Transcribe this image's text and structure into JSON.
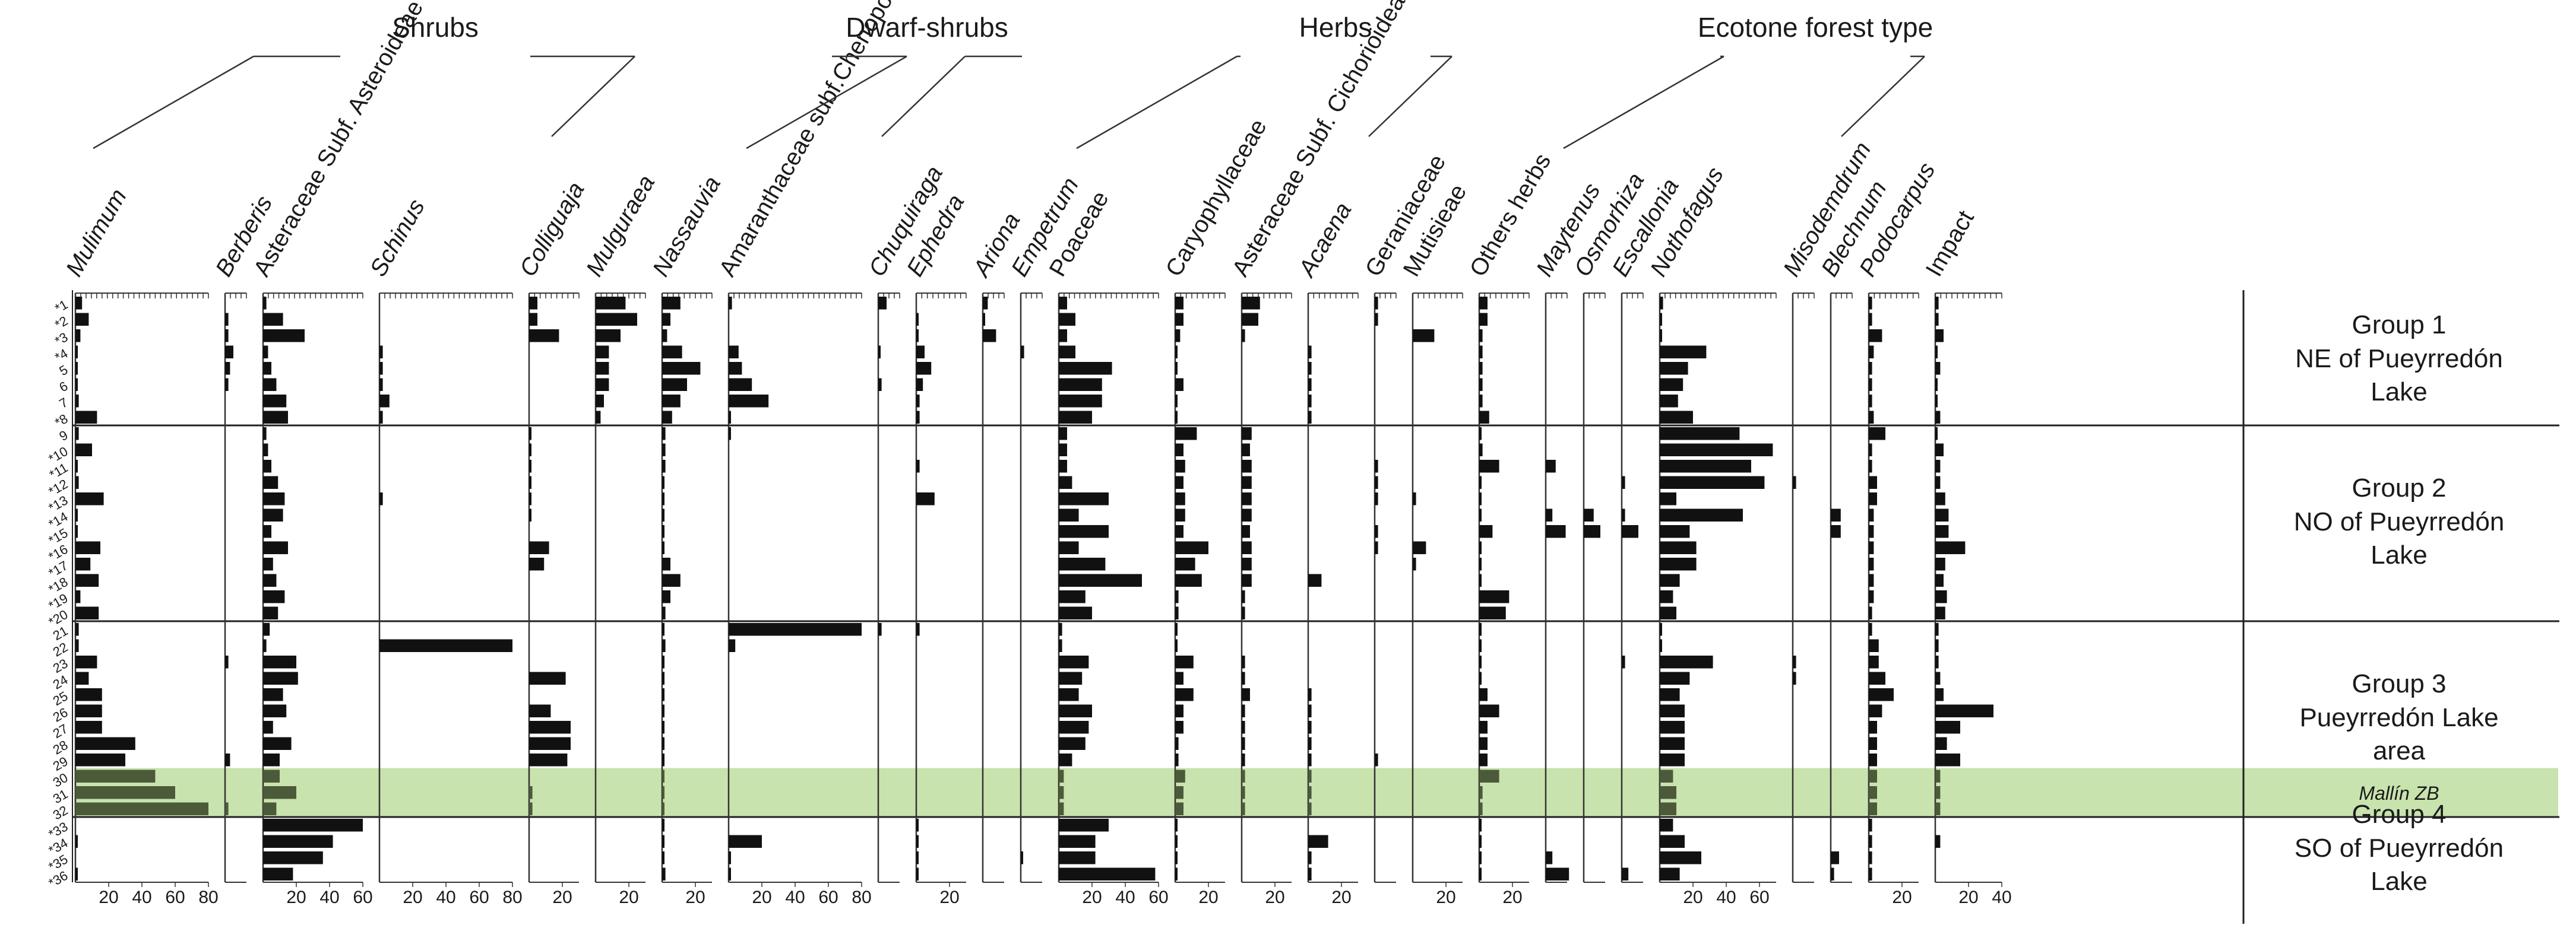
{
  "chart_data": {
    "type": "bar",
    "orientation": "horizontal",
    "title": "",
    "category_headers": [
      "Shrubs",
      "Dwarf-shrubs",
      "Herbs",
      "Ecotone forest type"
    ],
    "samples": [
      "*1",
      "*2",
      "*3",
      "*4",
      "5",
      "6",
      "7",
      "*8",
      "9",
      "*10",
      "*11",
      "*12",
      "*13",
      "*14",
      "*15",
      "*16",
      "*17",
      "*18",
      "*19",
      "*20",
      "21",
      "22",
      "23",
      "24",
      "25",
      "26",
      "27",
      "28",
      "29",
      "30",
      "31",
      "32",
      "*33",
      "*34",
      "*35",
      "*36"
    ],
    "mallin_label": "Mallín ZB",
    "mallin_rows": [
      "30",
      "31",
      "32"
    ],
    "groups": [
      {
        "name": "Group 1",
        "location": "NE of Pueyrredón Lake",
        "first": "*1",
        "last": "*8"
      },
      {
        "name": "Group 2",
        "location": "NO of Pueyrredón Lake",
        "first": "9",
        "last": "*20"
      },
      {
        "name": "Group 3",
        "location": "Pueyrredón Lake area",
        "first": "21",
        "last": "32"
      },
      {
        "name": "Group 4",
        "location": "SO of Pueyrredón Lake",
        "first": "*33",
        "last": "*36"
      }
    ],
    "series": [
      {
        "name": "Mulimum",
        "italic": true,
        "max": 80,
        "ticks": [
          "20",
          "40",
          "60",
          "80"
        ],
        "values": [
          4,
          8,
          3,
          1,
          1,
          1,
          2,
          13,
          2,
          10,
          1,
          2,
          17,
          1,
          1,
          15,
          9,
          14,
          3,
          14,
          2,
          2,
          13,
          8,
          16,
          16,
          16,
          36,
          30,
          48,
          60,
          80,
          0,
          1,
          0,
          1
        ]
      },
      {
        "name": "Berberis",
        "italic": true,
        "max": 10,
        "ticks": [],
        "values": [
          0,
          2,
          2,
          5,
          3,
          2,
          0,
          0,
          0,
          0,
          0,
          0,
          0,
          0,
          0,
          0,
          0,
          0,
          0,
          0,
          0,
          0,
          2,
          0,
          0,
          0,
          0,
          0,
          3,
          0,
          0,
          2,
          0,
          0,
          0,
          0
        ]
      },
      {
        "name": "Asteraceae Subf. Asteroideae",
        "italic": false,
        "max": 60,
        "ticks": [
          "20",
          "40",
          "60"
        ],
        "values": [
          2,
          12,
          25,
          3,
          5,
          8,
          14,
          15,
          2,
          3,
          5,
          9,
          13,
          12,
          5,
          15,
          6,
          8,
          13,
          9,
          4,
          2,
          20,
          21,
          12,
          14,
          6,
          17,
          10,
          10,
          20,
          8,
          60,
          42,
          36,
          18
        ]
      },
      {
        "name": "Schinus",
        "italic": true,
        "max": 80,
        "ticks": [
          "20",
          "40",
          "60",
          "80"
        ],
        "values": [
          0,
          0,
          0,
          2,
          2,
          2,
          6,
          2,
          0,
          0,
          0,
          0,
          2,
          0,
          0,
          0,
          0,
          0,
          0,
          0,
          0,
          80,
          0,
          0,
          0,
          0,
          0,
          0,
          0,
          0,
          0,
          0,
          0,
          0,
          0,
          0
        ]
      },
      {
        "name": "Colliguaja",
        "italic": true,
        "max": 30,
        "ticks": [
          "20"
        ],
        "values": [
          5,
          5,
          18,
          0,
          0,
          0,
          0,
          0,
          1,
          1,
          1,
          1,
          1,
          1,
          0,
          12,
          9,
          0,
          0,
          0,
          0,
          0,
          0,
          22,
          0,
          13,
          25,
          25,
          23,
          0,
          2,
          2,
          0,
          0,
          0,
          0
        ]
      },
      {
        "name": "Mulguraea",
        "italic": true,
        "max": 30,
        "ticks": [
          "20"
        ],
        "values": [
          18,
          25,
          15,
          8,
          8,
          8,
          5,
          3,
          0,
          0,
          0,
          0,
          0,
          0,
          0,
          0,
          0,
          0,
          0,
          0,
          0,
          0,
          0,
          0,
          0,
          0,
          0,
          0,
          0,
          0,
          0,
          0,
          0,
          0,
          0,
          0
        ]
      },
      {
        "name": "Nassauvia",
        "italic": true,
        "max": 30,
        "ticks": [
          "20"
        ],
        "values": [
          11,
          5,
          3,
          12,
          23,
          15,
          11,
          6,
          2,
          2,
          2,
          1,
          1,
          1,
          1,
          1,
          5,
          11,
          5,
          2,
          1,
          2,
          1,
          1,
          1,
          1,
          1,
          1,
          1,
          1,
          1,
          1,
          1,
          1,
          1,
          2
        ]
      },
      {
        "name": "Amaranthaceae subf.Chenopodioideae",
        "italic": false,
        "max": 80,
        "ticks": [
          "20",
          "40",
          "60",
          "80"
        ],
        "values": [
          2,
          0,
          0,
          6,
          8,
          14,
          24,
          1,
          1,
          0,
          0,
          0,
          0,
          0,
          0,
          0,
          0,
          0,
          0,
          0,
          80,
          4,
          0,
          0,
          0,
          0,
          0,
          0,
          0,
          0,
          0,
          0,
          0,
          20,
          1,
          1
        ]
      },
      {
        "name": "Chuquiraga",
        "italic": true,
        "max": 10,
        "ticks": [],
        "values": [
          5,
          0,
          0,
          1,
          0,
          2,
          0,
          0,
          0,
          0,
          0,
          0,
          0,
          0,
          0,
          0,
          0,
          0,
          0,
          0,
          2,
          0,
          0,
          0,
          0,
          0,
          0,
          0,
          0,
          0,
          0,
          0,
          0,
          0,
          0,
          0
        ]
      },
      {
        "name": "Ephedra",
        "italic": true,
        "max": 30,
        "ticks": [
          "20"
        ],
        "values": [
          0,
          1,
          1,
          5,
          9,
          4,
          2,
          2,
          0,
          0,
          2,
          0,
          11,
          0,
          0,
          0,
          0,
          0,
          0,
          0,
          2,
          0,
          0,
          0,
          0,
          0,
          0,
          0,
          0,
          0,
          0,
          0,
          1,
          1,
          1,
          1
        ]
      },
      {
        "name": "Ariona",
        "italic": true,
        "max": 10,
        "ticks": [],
        "values": [
          3,
          1,
          8,
          0,
          0,
          0,
          0,
          0,
          0,
          0,
          0,
          0,
          0,
          0,
          0,
          0,
          0,
          0,
          0,
          0,
          0,
          0,
          0,
          0,
          0,
          0,
          0,
          0,
          0,
          0,
          0,
          0,
          0,
          0,
          0,
          0
        ]
      },
      {
        "name": "Empetrum",
        "italic": true,
        "max": 10,
        "ticks": [],
        "values": [
          0,
          0,
          0,
          2,
          0,
          0,
          0,
          0,
          0,
          0,
          0,
          0,
          0,
          0,
          0,
          0,
          0,
          0,
          0,
          0,
          0,
          0,
          0,
          0,
          0,
          0,
          0,
          0,
          0,
          0,
          0,
          0,
          0,
          0,
          1,
          0
        ]
      },
      {
        "name": "Poaceae",
        "italic": false,
        "max": 60,
        "ticks": [
          "20",
          "40",
          "60"
        ],
        "values": [
          5,
          10,
          5,
          10,
          32,
          26,
          26,
          20,
          5,
          5,
          5,
          8,
          30,
          12,
          30,
          12,
          28,
          50,
          16,
          20,
          2,
          2,
          18,
          14,
          12,
          20,
          18,
          16,
          8,
          3,
          3,
          3,
          30,
          22,
          22,
          58
        ]
      },
      {
        "name": "Caryophyllaceae",
        "italic": false,
        "max": 30,
        "ticks": [
          "20"
        ],
        "values": [
          5,
          5,
          3,
          1,
          1,
          5,
          1,
          1,
          13,
          5,
          6,
          5,
          6,
          6,
          5,
          20,
          12,
          16,
          2,
          2,
          1,
          1,
          11,
          5,
          11,
          5,
          5,
          2,
          2,
          6,
          5,
          5,
          1,
          1,
          1,
          1
        ]
      },
      {
        "name": "Asteraceae Subf. Cichorioideae",
        "italic": false,
        "max": 30,
        "ticks": [
          "20"
        ],
        "values": [
          11,
          10,
          2,
          0,
          0,
          0,
          0,
          0,
          6,
          5,
          6,
          6,
          6,
          6,
          5,
          6,
          6,
          6,
          2,
          2,
          0,
          0,
          2,
          2,
          5,
          2,
          2,
          2,
          2,
          2,
          2,
          2,
          0,
          0,
          0,
          0
        ]
      },
      {
        "name": "Acaena",
        "italic": true,
        "max": 30,
        "ticks": [
          "20"
        ],
        "values": [
          0,
          0,
          0,
          2,
          2,
          2,
          2,
          2,
          0,
          0,
          0,
          0,
          0,
          0,
          0,
          0,
          0,
          8,
          0,
          0,
          0,
          0,
          0,
          0,
          2,
          2,
          2,
          2,
          2,
          2,
          2,
          2,
          0,
          12,
          2,
          2
        ]
      },
      {
        "name": "Geraniaceae",
        "italic": false,
        "max": 10,
        "ticks": [],
        "values": [
          2,
          2,
          0,
          0,
          0,
          0,
          0,
          0,
          0,
          0,
          2,
          2,
          2,
          0,
          2,
          2,
          0,
          0,
          0,
          0,
          0,
          0,
          0,
          0,
          0,
          0,
          0,
          0,
          2,
          0,
          0,
          0,
          0,
          0,
          0,
          0
        ]
      },
      {
        "name": "Mutisieae",
        "italic": false,
        "max": 30,
        "ticks": [
          "20"
        ],
        "values": [
          0,
          0,
          13,
          0,
          0,
          0,
          0,
          0,
          0,
          0,
          0,
          0,
          2,
          0,
          0,
          8,
          2,
          0,
          0,
          0,
          0,
          0,
          0,
          0,
          0,
          0,
          0,
          0,
          0,
          0,
          0,
          0,
          0,
          0,
          0,
          0
        ]
      },
      {
        "name": "Others herbs",
        "italic": false,
        "max": 30,
        "ticks": [
          "20"
        ],
        "values": [
          5,
          5,
          2,
          2,
          2,
          2,
          2,
          6,
          1,
          2,
          12,
          1,
          1,
          1,
          8,
          1,
          1,
          1,
          18,
          16,
          1,
          1,
          1,
          1,
          5,
          12,
          5,
          5,
          5,
          12,
          2,
          2,
          1,
          1,
          1,
          1
        ]
      },
      {
        "name": "Maytenus",
        "italic": true,
        "max": 10,
        "ticks": [],
        "values": [
          0,
          0,
          0,
          0,
          0,
          0,
          0,
          0,
          0,
          0,
          6,
          0,
          0,
          4,
          12,
          0,
          0,
          0,
          0,
          0,
          0,
          0,
          0,
          0,
          0,
          0,
          0,
          0,
          0,
          0,
          0,
          0,
          0,
          0,
          4,
          14
        ]
      },
      {
        "name": "Osmorhiza",
        "italic": true,
        "max": 10,
        "ticks": [],
        "values": [
          0,
          0,
          0,
          0,
          0,
          0,
          0,
          0,
          0,
          0,
          0,
          0,
          0,
          6,
          10,
          0,
          0,
          0,
          0,
          0,
          0,
          0,
          0,
          0,
          0,
          0,
          0,
          0,
          0,
          0,
          0,
          0,
          0,
          0,
          0,
          0
        ]
      },
      {
        "name": "Escallonia",
        "italic": true,
        "max": 10,
        "ticks": [],
        "values": [
          0,
          0,
          0,
          0,
          0,
          0,
          0,
          0,
          0,
          0,
          0,
          2,
          0,
          2,
          10,
          0,
          0,
          0,
          0,
          0,
          0,
          0,
          2,
          0,
          0,
          0,
          0,
          0,
          0,
          0,
          0,
          0,
          0,
          0,
          0,
          4
        ]
      },
      {
        "name": "Nothofagus",
        "italic": true,
        "max": 70,
        "ticks": [
          "20",
          "40",
          "60"
        ],
        "values": [
          2,
          1,
          1,
          28,
          17,
          14,
          11,
          20,
          48,
          68,
          55,
          63,
          10,
          50,
          18,
          22,
          22,
          12,
          8,
          10,
          1,
          1,
          32,
          18,
          12,
          15,
          15,
          15,
          15,
          8,
          10,
          10,
          8,
          15,
          25,
          12
        ]
      },
      {
        "name": "Misodemdrum",
        "italic": true,
        "max": 10,
        "ticks": [],
        "values": [
          0,
          0,
          0,
          0,
          0,
          0,
          0,
          0,
          0,
          0,
          0,
          2,
          0,
          0,
          0,
          0,
          0,
          0,
          0,
          0,
          0,
          0,
          2,
          2,
          0,
          0,
          0,
          0,
          0,
          0,
          0,
          0,
          0,
          0,
          0,
          0
        ]
      },
      {
        "name": "Blechnum",
        "italic": true,
        "max": 10,
        "ticks": [],
        "values": [
          0,
          0,
          0,
          0,
          0,
          0,
          0,
          0,
          0,
          0,
          0,
          0,
          0,
          6,
          6,
          0,
          0,
          0,
          0,
          0,
          0,
          0,
          0,
          0,
          0,
          0,
          0,
          0,
          0,
          0,
          0,
          0,
          0,
          0,
          5,
          2
        ]
      },
      {
        "name": "Podocarpus",
        "italic": true,
        "max": 30,
        "ticks": [
          "20"
        ],
        "values": [
          2,
          2,
          8,
          3,
          2,
          2,
          2,
          3,
          10,
          2,
          2,
          5,
          5,
          3,
          3,
          3,
          3,
          3,
          3,
          2,
          2,
          6,
          6,
          10,
          15,
          8,
          5,
          5,
          5,
          5,
          5,
          5,
          2,
          2,
          2,
          2
        ]
      },
      {
        "name": "Impact",
        "italic": false,
        "max": 40,
        "ticks": [
          "20",
          "40"
        ],
        "values": [
          2,
          2,
          5,
          1,
          3,
          1,
          1,
          3,
          1,
          5,
          3,
          3,
          6,
          8,
          8,
          18,
          6,
          5,
          7,
          6,
          2,
          2,
          2,
          3,
          5,
          35,
          15,
          7,
          15,
          3,
          3,
          3,
          0,
          3,
          0,
          0
        ]
      }
    ]
  }
}
